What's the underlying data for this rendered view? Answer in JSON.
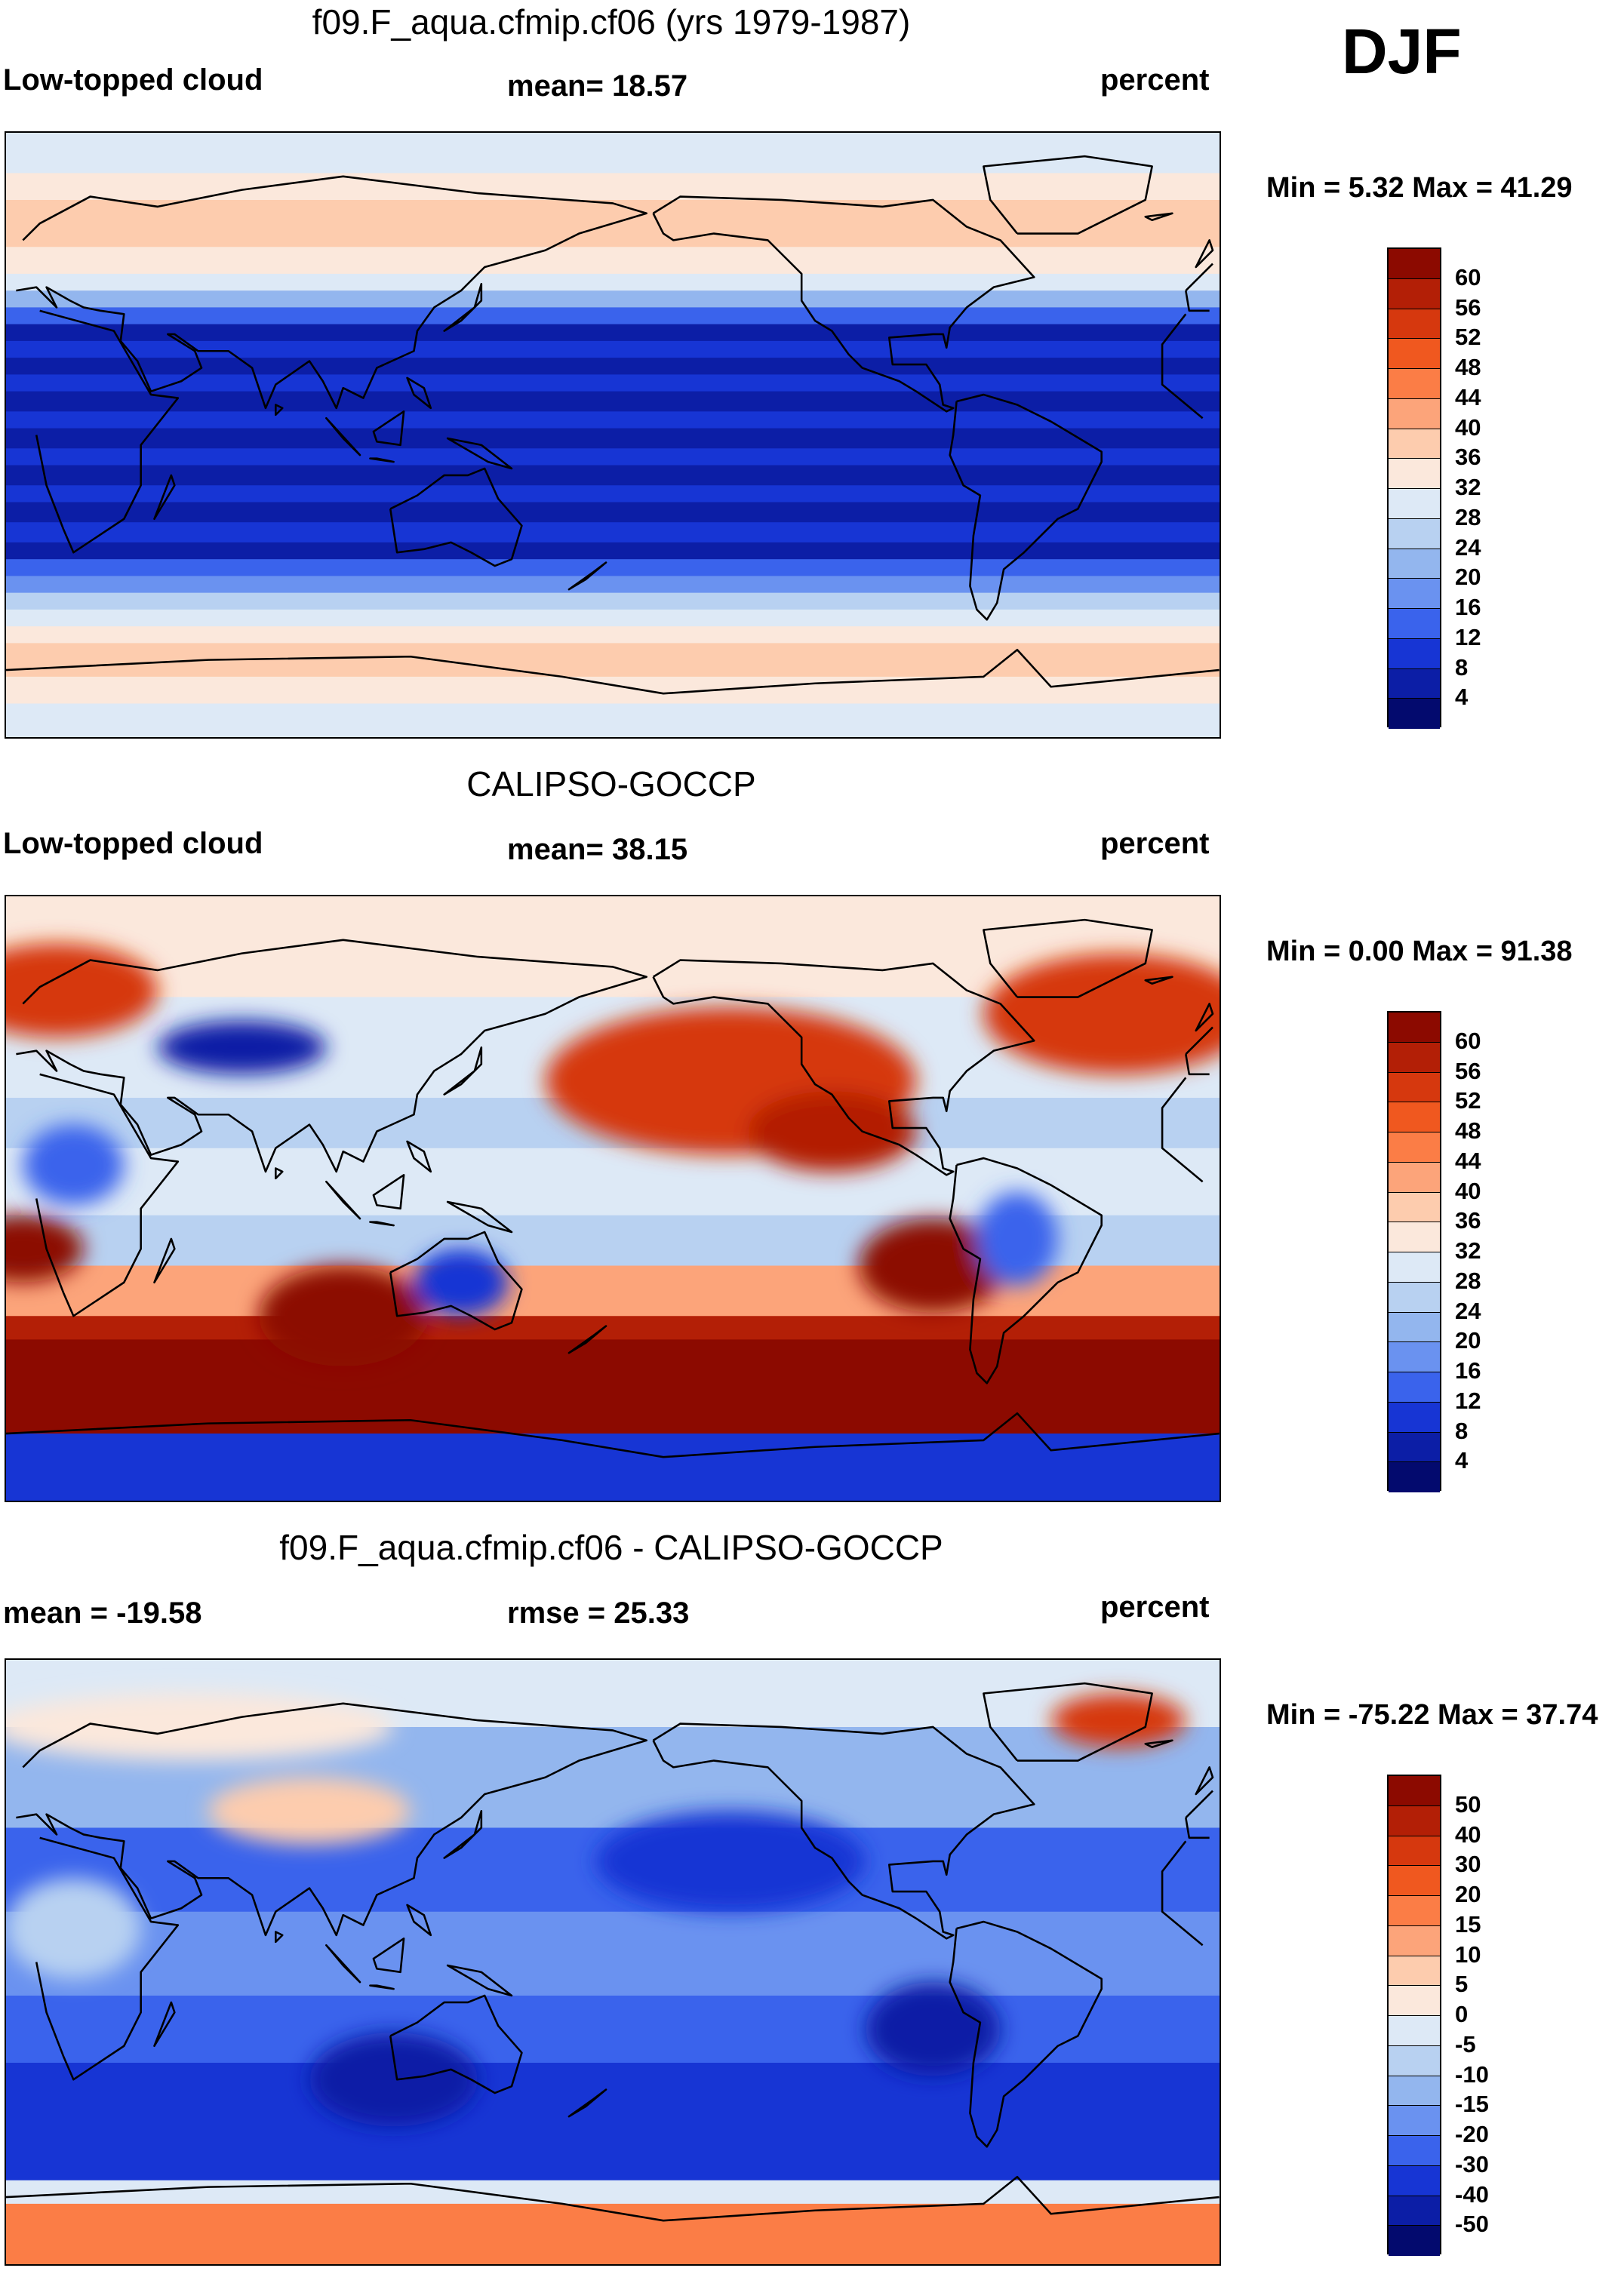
{
  "season": "DJF",
  "panels": [
    {
      "id": "model",
      "title": "f09.F_aqua.cfmip.cf06 (yrs 1979-1987)",
      "left_label": "Low-topped cloud",
      "center_label": "mean=  18.57",
      "right_label": "percent",
      "minmax": "Min =   5.32 Max =  41.29",
      "colorbar": {
        "labels": [
          "60",
          "56",
          "52",
          "48",
          "44",
          "40",
          "36",
          "32",
          "28",
          "24",
          "20",
          "16",
          "12",
          "8",
          "4"
        ],
        "colors": [
          "#8c0a00",
          "#b31f06",
          "#d6380e",
          "#f0581f",
          "#fb7d46",
          "#fca47a",
          "#fdccae",
          "#fbe8dc",
          "#dde9f6",
          "#b8d1f1",
          "#93b6ee",
          "#6a92f0",
          "#3a63ec",
          "#1735d4",
          "#0c1ea6",
          "#030a6e"
        ]
      },
      "bands": [
        {
          "lat": 90,
          "color": "#dde9f6"
        },
        {
          "lat": 78,
          "color": "#fbe8dc"
        },
        {
          "lat": 70,
          "color": "#fdccae"
        },
        {
          "lat": 56,
          "color": "#fbe8dc"
        },
        {
          "lat": 48,
          "color": "#dde9f6"
        },
        {
          "lat": 43,
          "color": "#93b6ee"
        },
        {
          "lat": 38,
          "color": "#3a63ec"
        },
        {
          "lat": 33,
          "color": "#0c1ea6"
        },
        {
          "lat": 28,
          "color": "#1735d4"
        },
        {
          "lat": 23,
          "color": "#0c1ea6"
        },
        {
          "lat": 18,
          "color": "#1735d4"
        },
        {
          "lat": 13,
          "color": "#0c1ea6"
        },
        {
          "lat": 7,
          "color": "#1735d4"
        },
        {
          "lat": 2,
          "color": "#0c1ea6"
        },
        {
          "lat": -4,
          "color": "#1735d4"
        },
        {
          "lat": -9,
          "color": "#0c1ea6"
        },
        {
          "lat": -15,
          "color": "#1735d4"
        },
        {
          "lat": -20,
          "color": "#0c1ea6"
        },
        {
          "lat": -26,
          "color": "#1735d4"
        },
        {
          "lat": -32,
          "color": "#0c1ea6"
        },
        {
          "lat": -37,
          "color": "#3a63ec"
        },
        {
          "lat": -42,
          "color": "#6a92f0"
        },
        {
          "lat": -47,
          "color": "#b8d1f1"
        },
        {
          "lat": -52,
          "color": "#dde9f6"
        },
        {
          "lat": -57,
          "color": "#fbe8dc"
        },
        {
          "lat": -62,
          "color": "#fdccae"
        },
        {
          "lat": -72,
          "color": "#fbe8dc"
        },
        {
          "lat": -80,
          "color": "#dde9f6"
        }
      ],
      "blobs": []
    },
    {
      "id": "obs",
      "title": "CALIPSO-GOCCP",
      "left_label": "Low-topped cloud",
      "center_label": "mean=  38.15",
      "right_label": "percent",
      "minmax": "Min =   0.00 Max =  91.38",
      "colorbar": {
        "labels": [
          "60",
          "56",
          "52",
          "48",
          "44",
          "40",
          "36",
          "32",
          "28",
          "24",
          "20",
          "16",
          "12",
          "8",
          "4"
        ],
        "colors": [
          "#8c0a00",
          "#b31f06",
          "#d6380e",
          "#f0581f",
          "#fb7d46",
          "#fca47a",
          "#fdccae",
          "#fbe8dc",
          "#dde9f6",
          "#b8d1f1",
          "#93b6ee",
          "#6a92f0",
          "#3a63ec",
          "#1735d4",
          "#0c1ea6",
          "#030a6e"
        ]
      },
      "bands": [
        {
          "lat": 90,
          "color": "#fbe8dc"
        },
        {
          "lat": 60,
          "color": "#dde9f6"
        },
        {
          "lat": 30,
          "color": "#b8d1f1"
        },
        {
          "lat": 15,
          "color": "#dde9f6"
        },
        {
          "lat": -5,
          "color": "#b8d1f1"
        },
        {
          "lat": -20,
          "color": "#fca47a"
        },
        {
          "lat": -35,
          "color": "#b31f06"
        },
        {
          "lat": -42,
          "color": "#8c0a00"
        },
        {
          "lat": -70,
          "color": "#1735d4"
        }
      ],
      "blobs": [
        {
          "lon": 215,
          "lat": 35,
          "rx": 55,
          "ry": 22,
          "color": "#d6380e"
        },
        {
          "lon": 245,
          "lat": 20,
          "rx": 25,
          "ry": 12,
          "color": "#b31f06"
        },
        {
          "lon": 330,
          "lat": 55,
          "rx": 40,
          "ry": 18,
          "color": "#d6380e"
        },
        {
          "lon": 15,
          "lat": 62,
          "rx": 30,
          "ry": 14,
          "color": "#d6380e"
        },
        {
          "lon": 275,
          "lat": -20,
          "rx": 22,
          "ry": 14,
          "color": "#8c0a00"
        },
        {
          "lon": 5,
          "lat": -15,
          "rx": 18,
          "ry": 10,
          "color": "#8c0a00"
        },
        {
          "lon": 100,
          "lat": -35,
          "rx": 25,
          "ry": 15,
          "color": "#8c0a00"
        },
        {
          "lon": 70,
          "lat": 45,
          "rx": 25,
          "ry": 8,
          "color": "#0c1ea6"
        },
        {
          "lon": 135,
          "lat": -25,
          "rx": 14,
          "ry": 10,
          "color": "#1735d4"
        },
        {
          "lon": 300,
          "lat": -12,
          "rx": 12,
          "ry": 14,
          "color": "#3a63ec"
        },
        {
          "lon": 20,
          "lat": 10,
          "rx": 15,
          "ry": 12,
          "color": "#3a63ec"
        }
      ]
    },
    {
      "id": "diff",
      "title": "f09.F_aqua.cfmip.cf06 - CALIPSO-GOCCP",
      "left_label": "mean = -19.58",
      "center_label": "rmse =  25.33",
      "right_label": "percent",
      "minmax": "Min = -75.22 Max =  37.74",
      "colorbar": {
        "labels": [
          "50",
          "40",
          "30",
          "20",
          "15",
          "10",
          "5",
          "0",
          "-5",
          "-10",
          "-15",
          "-20",
          "-30",
          "-40",
          "-50"
        ],
        "colors": [
          "#8c0a00",
          "#b31f06",
          "#d6380e",
          "#f0581f",
          "#fb7d46",
          "#fca47a",
          "#fdccae",
          "#fbe8dc",
          "#dde9f6",
          "#b8d1f1",
          "#93b6ee",
          "#6a92f0",
          "#3a63ec",
          "#1735d4",
          "#0c1ea6",
          "#030a6e"
        ]
      },
      "bands": [
        {
          "lat": 90,
          "color": "#dde9f6"
        },
        {
          "lat": 70,
          "color": "#93b6ee"
        },
        {
          "lat": 40,
          "color": "#3a63ec"
        },
        {
          "lat": 15,
          "color": "#6a92f0"
        },
        {
          "lat": -10,
          "color": "#3a63ec"
        },
        {
          "lat": -30,
          "color": "#1735d4"
        },
        {
          "lat": -65,
          "color": "#dde9f6"
        },
        {
          "lat": -72,
          "color": "#fb7d46"
        }
      ],
      "blobs": [
        {
          "lon": 90,
          "lat": 45,
          "rx": 30,
          "ry": 10,
          "color": "#fdccae"
        },
        {
          "lon": 55,
          "lat": 70,
          "rx": 60,
          "ry": 10,
          "color": "#fbe8dc"
        },
        {
          "lon": 330,
          "lat": 72,
          "rx": 20,
          "ry": 8,
          "color": "#d6380e"
        },
        {
          "lon": 275,
          "lat": -20,
          "rx": 20,
          "ry": 14,
          "color": "#0c1ea6"
        },
        {
          "lon": 115,
          "lat": -35,
          "rx": 25,
          "ry": 14,
          "color": "#0c1ea6"
        },
        {
          "lon": 215,
          "lat": 30,
          "rx": 40,
          "ry": 15,
          "color": "#1735d4"
        },
        {
          "lon": 20,
          "lat": 10,
          "rx": 20,
          "ry": 15,
          "color": "#b8d1f1"
        }
      ]
    }
  ]
}
